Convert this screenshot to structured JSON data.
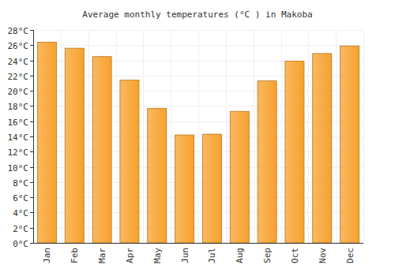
{
  "chart_data": {
    "type": "bar",
    "title": "Average monthly temperatures (°C ) in Makoba",
    "categories": [
      "Jan",
      "Feb",
      "Mar",
      "Apr",
      "May",
      "Jun",
      "Jul",
      "Aug",
      "Sep",
      "Oct",
      "Nov",
      "Dec"
    ],
    "values": [
      26.4,
      25.6,
      24.5,
      21.4,
      17.7,
      14.2,
      14.3,
      17.3,
      21.3,
      23.9,
      24.9,
      25.9
    ],
    "color": "#f7a12c",
    "ylim": [
      0,
      28
    ],
    "yticks": [
      {
        "value": 0,
        "label": "0°C"
      },
      {
        "value": 2,
        "label": "2°C"
      },
      {
        "value": 4,
        "label": "4°C"
      },
      {
        "value": 6,
        "label": "6°C"
      },
      {
        "value": 8,
        "label": "8°C"
      },
      {
        "value": 10,
        "label": "10°C"
      },
      {
        "value": 12,
        "label": "12°C"
      },
      {
        "value": 14,
        "label": "14°C"
      },
      {
        "value": 16,
        "label": "16°C"
      },
      {
        "value": 18,
        "label": "18°C"
      },
      {
        "value": 20,
        "label": "20°C"
      },
      {
        "value": 22,
        "label": "22°C"
      },
      {
        "value": 24,
        "label": "24°C"
      },
      {
        "value": 26,
        "label": "26°C"
      },
      {
        "value": 28,
        "label": "28°C"
      }
    ],
    "grid": true
  }
}
